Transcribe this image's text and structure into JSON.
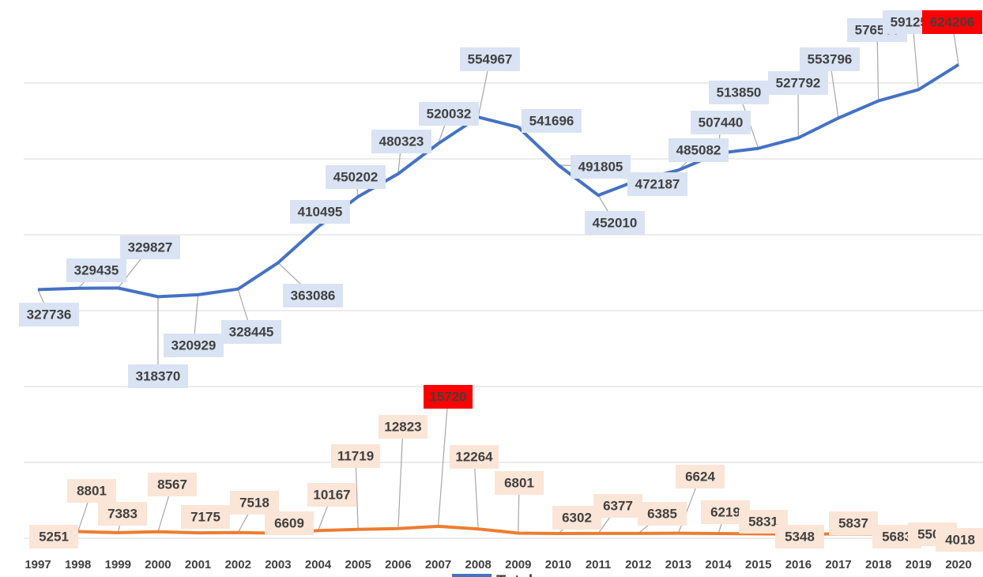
{
  "chart_data": {
    "type": "line",
    "categories": [
      "1997",
      "1998",
      "1999",
      "2000",
      "2001",
      "2002",
      "2003",
      "2004",
      "2005",
      "2006",
      "2007",
      "2008",
      "2009",
      "2010",
      "2011",
      "2012",
      "2013",
      "2014",
      "2015",
      "2016",
      "2017",
      "2018",
      "2019",
      "2020"
    ],
    "series": [
      {
        "name": "Total",
        "color": "#4472c4",
        "label_fill": "#dae3f3",
        "values": [
          327736,
          329435,
          329827,
          318370,
          320929,
          328445,
          363086,
          410495,
          450202,
          480323,
          520032,
          554967,
          541696,
          491805,
          452010,
          472187,
          485082,
          507440,
          513850,
          527792,
          553796,
          576500,
          591250,
          624206
        ]
      },
      {
        "color": "#ed7d31",
        "label_fill": "#fbe5d6",
        "values": [
          5251,
          8801,
          7383,
          8567,
          7175,
          7518,
          6609,
          10167,
          11719,
          12823,
          15720,
          12264,
          6801,
          6302,
          6377,
          6385,
          6624,
          6219,
          5831,
          5348,
          5837,
          5683,
          5500,
          4018
        ]
      }
    ],
    "highlight_max_color": "#ff0000",
    "ylim": [
      0,
      700000
    ],
    "yticks": [
      0,
      100000,
      200000,
      300000,
      400000,
      500000,
      600000
    ],
    "grid": true
  }
}
